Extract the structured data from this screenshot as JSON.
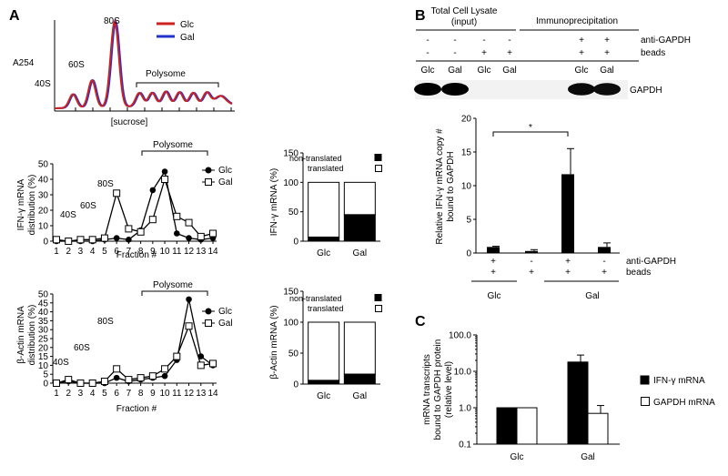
{
  "panels": {
    "A": {
      "letter": "A"
    },
    "B": {
      "letter": "B"
    },
    "C": {
      "letter": "C"
    }
  },
  "colors": {
    "glc_profile": "#cc2222",
    "gal_profile": "#2233cc",
    "filled": "#000000",
    "open": "#ffffff"
  },
  "chart_data": [
    {
      "id": "a254-profile",
      "type": "line",
      "title": "",
      "xlabel": "[sucrose]",
      "ylabel": "A254",
      "legend": [
        "Glc",
        "Gal"
      ],
      "legend_position": "top-right",
      "annotations": [
        "40S",
        "60S",
        "80S",
        "Polysome"
      ]
    },
    {
      "id": "ifn-distribution",
      "type": "line",
      "xlabel": "Fraction #",
      "ylabel": "IFN-γ mRNA distribution (%)",
      "ylim": [
        0,
        50
      ],
      "yticks": [
        "0",
        "10",
        "20",
        "30",
        "40",
        "50"
      ],
      "x": [
        1,
        2,
        3,
        4,
        5,
        6,
        7,
        8,
        9,
        10,
        11,
        12,
        13,
        14
      ],
      "series": [
        {
          "name": "Glc",
          "marker": "filled-circle",
          "values": [
            0,
            0,
            0,
            0,
            1,
            2,
            1,
            7,
            33,
            45,
            5,
            2,
            1,
            2
          ]
        },
        {
          "name": "Gal",
          "marker": "open-square",
          "values": [
            1,
            0,
            1,
            1,
            2,
            31,
            8,
            6,
            14,
            40,
            16,
            12,
            3,
            5
          ]
        }
      ],
      "legend_position": "right",
      "annotations": [
        "Polysome",
        "80S",
        "60S",
        "40S"
      ]
    },
    {
      "id": "ifn-translated",
      "type": "bar",
      "categories": [
        "Glc",
        "Gal"
      ],
      "ylabel": "IFN-γ mRNA (%)",
      "ylim": [
        0,
        150
      ],
      "yticks": [
        "0",
        "50",
        "100",
        "150"
      ],
      "series": [
        {
          "name": "translated",
          "fill": "open",
          "values": [
            93,
            55
          ]
        },
        {
          "name": "non-translated",
          "fill": "filled",
          "values": [
            7,
            45
          ]
        }
      ],
      "legend_position": "top"
    },
    {
      "id": "actin-distribution",
      "type": "line",
      "xlabel": "Fraction #",
      "ylabel": "β-Actin mRNA distribution (%)",
      "ylim": [
        0,
        50
      ],
      "yticks": [
        "0",
        "5",
        "10",
        "15",
        "20",
        "25",
        "30",
        "35",
        "40",
        "45",
        "50"
      ],
      "x": [
        1,
        2,
        3,
        4,
        5,
        6,
        7,
        8,
        9,
        10,
        11,
        12,
        13,
        14
      ],
      "series": [
        {
          "name": "Glc",
          "marker": "filled-circle",
          "values": [
            0,
            1,
            0,
            0,
            0,
            3,
            1,
            2,
            3,
            4,
            13,
            47,
            15,
            10
          ]
        },
        {
          "name": "Gal",
          "marker": "open-square",
          "values": [
            0,
            2,
            0,
            0,
            1,
            8,
            2,
            3,
            4,
            8,
            15,
            32,
            10,
            11
          ]
        }
      ],
      "legend_position": "right",
      "annotations": [
        "Polysome",
        "80S",
        "60S",
        "40S"
      ]
    },
    {
      "id": "actin-translated",
      "type": "bar",
      "categories": [
        "Glc",
        "Gal"
      ],
      "ylabel": "β-Actin mRNA (%)",
      "ylim": [
        0,
        150
      ],
      "yticks": [
        "0",
        "50",
        "100",
        "150"
      ],
      "series": [
        {
          "name": "translated",
          "fill": "open",
          "values": [
            94,
            84
          ]
        },
        {
          "name": "non-translated",
          "fill": "filled",
          "values": [
            6,
            16
          ]
        }
      ],
      "legend_position": "top"
    },
    {
      "id": "ifn-bound-gapdh",
      "type": "bar",
      "categories": [
        "Glc +/+",
        "Glc -/+",
        "Gal +/+",
        "Gal -/+"
      ],
      "group_labels": [
        "Glc",
        "Gal"
      ],
      "ylabel": "Relative IFN-γ mRNA copy # bound to GAPDH",
      "ylim": [
        0,
        20
      ],
      "yticks": [
        "0",
        "5",
        "10",
        "15",
        "20"
      ],
      "values": [
        0.9,
        0.3,
        11.7,
        0.9
      ],
      "errors": [
        0.1,
        0.2,
        3.8,
        0.6
      ],
      "anti_gapdh_row": [
        "+",
        "-",
        "+",
        "-"
      ],
      "beads_row": [
        "+",
        "+",
        "+",
        "+"
      ],
      "row_labels": [
        "anti-GAPDH",
        "beads"
      ],
      "significance": "*"
    },
    {
      "id": "mrna-bound-gapdh-protein",
      "type": "bar",
      "scale": "log",
      "categories": [
        "Glc",
        "Gal"
      ],
      "ylabel": "mRNA transcripts bound to GAPDH protein (relative level)",
      "ylim": [
        0.1,
        100
      ],
      "yticks": [
        "0.1",
        "1.0",
        "10.0",
        "100.0"
      ],
      "series": [
        {
          "name": "IFN-γ mRNA",
          "fill": "filled",
          "values": [
            1.0,
            18
          ],
          "errors": [
            0,
            10
          ]
        },
        {
          "name": "GAPDH mRNA",
          "fill": "open",
          "values": [
            1.0,
            0.7
          ],
          "errors": [
            0,
            0.45
          ]
        }
      ],
      "legend_position": "right"
    }
  ],
  "western_blot": {
    "header_groups": [
      "Total Cell Lysate",
      "(input)",
      "Immunoprecipitation"
    ],
    "rows": [
      {
        "label": "anti-GAPDH",
        "values": [
          "-",
          "-",
          "-",
          "-",
          "+",
          "+"
        ]
      },
      {
        "label": "beads",
        "values": [
          "-",
          "-",
          "+",
          "+",
          "+",
          "+"
        ]
      }
    ],
    "lanes": [
      "Glc",
      "Gal",
      "Glc",
      "Gal",
      "Glc",
      "Gal"
    ],
    "band_label": "GAPDH",
    "band_intensity": [
      1.0,
      1.0,
      0.0,
      0.0,
      0.9,
      0.85
    ]
  }
}
